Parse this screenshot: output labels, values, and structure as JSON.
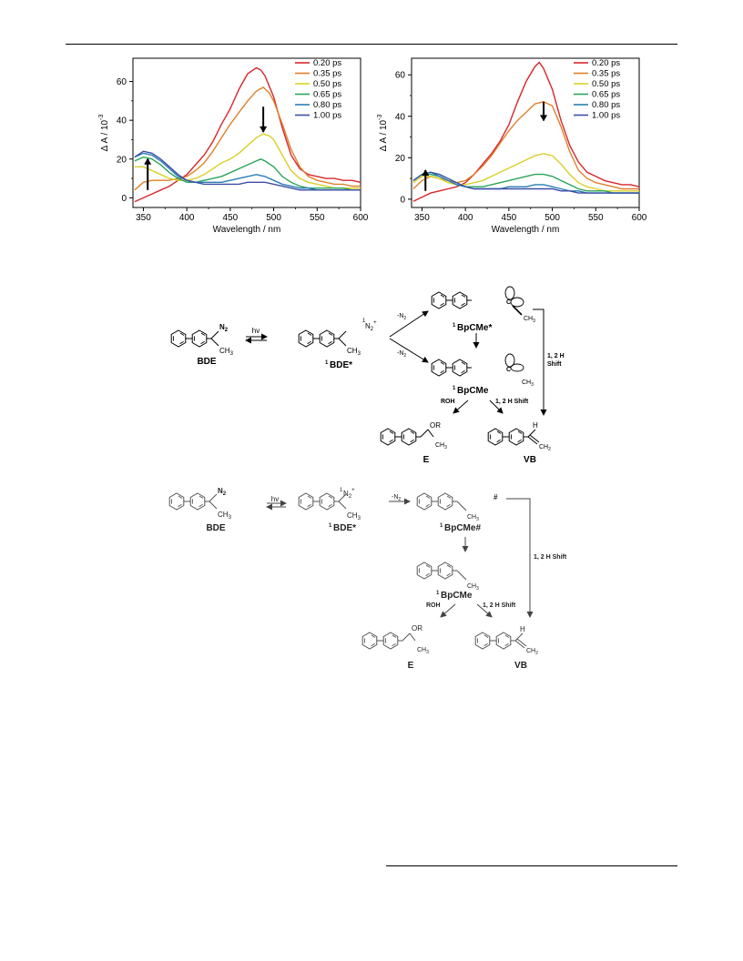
{
  "chart_data": [
    {
      "type": "line",
      "xlabel": "Wavelength / nm",
      "ylabel": "Δ A / 10",
      "ylabel_exp": "-3",
      "xlim": [
        338,
        600
      ],
      "ylim": [
        -5,
        72
      ],
      "xticks": [
        350,
        400,
        450,
        500,
        550,
        600
      ],
      "yticks": [
        0,
        20,
        40,
        60
      ],
      "legend_position": "top-right",
      "arrows": [
        "up at 355 nm",
        "down at 488 nm"
      ],
      "series": [
        {
          "name": "0.20 ps",
          "color": "#d7262b",
          "x": [
            340,
            350,
            360,
            370,
            380,
            390,
            400,
            410,
            420,
            430,
            440,
            450,
            460,
            470,
            480,
            485,
            490,
            500,
            510,
            520,
            530,
            540,
            550,
            560,
            570,
            580,
            590,
            600
          ],
          "y": [
            -2,
            0,
            2,
            4,
            6,
            9,
            12,
            17,
            22,
            29,
            38,
            46,
            56,
            64,
            67,
            66,
            63,
            52,
            36,
            22,
            15,
            12,
            11,
            10,
            10,
            9,
            9,
            8
          ]
        },
        {
          "name": "0.35 ps",
          "color": "#e07f2a",
          "x": [
            340,
            350,
            360,
            370,
            380,
            390,
            400,
            410,
            420,
            430,
            440,
            450,
            460,
            470,
            480,
            488,
            495,
            500,
            510,
            520,
            530,
            540,
            550,
            560,
            570,
            580,
            590,
            600
          ],
          "y": [
            4,
            8,
            9,
            9,
            9,
            10,
            11,
            14,
            18,
            24,
            31,
            38,
            44,
            50,
            55,
            57,
            54,
            50,
            38,
            25,
            16,
            11,
            9,
            8,
            7,
            7,
            6,
            6
          ]
        },
        {
          "name": "0.50 ps",
          "color": "#d8d027",
          "x": [
            340,
            350,
            360,
            370,
            380,
            390,
            400,
            410,
            420,
            430,
            440,
            450,
            460,
            470,
            480,
            488,
            495,
            500,
            510,
            520,
            530,
            540,
            550,
            560,
            570,
            580,
            590,
            600
          ],
          "y": [
            16,
            16,
            14,
            12,
            10,
            9,
            9,
            10,
            12,
            15,
            18,
            20,
            23,
            27,
            31,
            33,
            32,
            30,
            22,
            14,
            10,
            8,
            7,
            6,
            5,
            5,
            5,
            5
          ]
        },
        {
          "name": "0.65 ps",
          "color": "#2aa45a",
          "x": [
            340,
            350,
            360,
            370,
            380,
            390,
            400,
            410,
            420,
            430,
            440,
            450,
            460,
            470,
            480,
            485,
            490,
            500,
            510,
            520,
            530,
            540,
            550,
            560,
            570,
            580,
            590,
            600
          ],
          "y": [
            19,
            21,
            20,
            17,
            13,
            10,
            8,
            8,
            9,
            10,
            11,
            13,
            15,
            17,
            19,
            20,
            19,
            16,
            11,
            8,
            6,
            5,
            5,
            5,
            5,
            5,
            4,
            4
          ]
        },
        {
          "name": "0.80 ps",
          "color": "#2b7eb5",
          "x": [
            340,
            350,
            360,
            370,
            380,
            390,
            400,
            410,
            420,
            430,
            440,
            450,
            460,
            470,
            480,
            490,
            500,
            510,
            520,
            530,
            540,
            550,
            560,
            570,
            580,
            590,
            600
          ],
          "y": [
            21,
            23,
            22,
            19,
            15,
            11,
            9,
            8,
            8,
            8,
            8,
            9,
            10,
            11,
            12,
            11,
            9,
            7,
            6,
            5,
            5,
            4,
            4,
            4,
            4,
            4,
            4
          ]
        },
        {
          "name": "1.00 ps",
          "color": "#3c4ea5",
          "x": [
            340,
            350,
            360,
            370,
            380,
            390,
            400,
            410,
            420,
            430,
            440,
            450,
            460,
            470,
            480,
            490,
            500,
            510,
            520,
            530,
            540,
            550,
            560,
            570,
            580,
            590,
            600
          ],
          "y": [
            21,
            24,
            23,
            20,
            16,
            12,
            9,
            8,
            7,
            7,
            7,
            7,
            7,
            8,
            8,
            8,
            7,
            6,
            5,
            4,
            4,
            4,
            4,
            4,
            4,
            4,
            4
          ]
        }
      ]
    },
    {
      "type": "line",
      "xlabel": "Wavelength / nm",
      "ylabel": "Δ A / 10",
      "ylabel_exp": "-3",
      "xlim": [
        338,
        600
      ],
      "ylim": [
        -4,
        68
      ],
      "xticks": [
        350,
        400,
        450,
        500,
        550,
        600
      ],
      "yticks": [
        0,
        20,
        40,
        60
      ],
      "legend_position": "top-right",
      "arrows": [
        "up at 354 nm",
        "down at 490 nm"
      ],
      "series": [
        {
          "name": "0.20 ps",
          "color": "#d7262b",
          "x": [
            340,
            350,
            360,
            370,
            380,
            390,
            400,
            410,
            420,
            430,
            440,
            450,
            460,
            470,
            480,
            485,
            490,
            500,
            510,
            520,
            530,
            540,
            550,
            560,
            570,
            580,
            590,
            600
          ],
          "y": [
            -1,
            1,
            3,
            4,
            5,
            6,
            8,
            12,
            17,
            22,
            28,
            36,
            47,
            57,
            64,
            66,
            63,
            53,
            38,
            26,
            18,
            13,
            11,
            9,
            8,
            7,
            7,
            6
          ]
        },
        {
          "name": "0.35 ps",
          "color": "#e07f2a",
          "x": [
            340,
            350,
            360,
            370,
            380,
            390,
            400,
            410,
            420,
            430,
            440,
            450,
            460,
            470,
            480,
            490,
            500,
            510,
            520,
            530,
            540,
            550,
            560,
            570,
            580,
            590,
            600
          ],
          "y": [
            5,
            9,
            11,
            10,
            9,
            8,
            9,
            12,
            16,
            21,
            27,
            33,
            38,
            42,
            46,
            47,
            45,
            35,
            23,
            14,
            10,
            8,
            7,
            6,
            5,
            5,
            5
          ]
        },
        {
          "name": "0.50 ps",
          "color": "#d8d027",
          "x": [
            340,
            350,
            360,
            370,
            380,
            390,
            400,
            410,
            420,
            430,
            440,
            450,
            460,
            470,
            480,
            490,
            500,
            510,
            520,
            530,
            540,
            550,
            560,
            570,
            580,
            590,
            600
          ],
          "y": [
            8,
            11,
            11,
            10,
            8,
            7,
            7,
            8,
            9,
            11,
            13,
            15,
            17,
            19,
            21,
            22,
            21,
            17,
            12,
            8,
            6,
            5,
            4,
            4,
            4,
            4,
            4
          ]
        },
        {
          "name": "0.65 ps",
          "color": "#2aa45a",
          "x": [
            340,
            350,
            360,
            370,
            380,
            390,
            400,
            410,
            420,
            430,
            440,
            450,
            460,
            470,
            480,
            490,
            500,
            510,
            520,
            530,
            540,
            550,
            560,
            570,
            580,
            590,
            600
          ],
          "y": [
            9,
            12,
            12,
            11,
            9,
            7,
            6,
            6,
            6,
            7,
            8,
            9,
            10,
            11,
            12,
            12,
            11,
            9,
            7,
            5,
            4,
            4,
            4,
            3,
            3,
            3,
            3
          ]
        },
        {
          "name": "0.80 ps",
          "color": "#2b7eb5",
          "x": [
            340,
            350,
            360,
            370,
            380,
            390,
            400,
            410,
            420,
            430,
            440,
            450,
            460,
            470,
            480,
            490,
            500,
            510,
            520,
            530,
            540,
            550,
            560,
            570,
            580,
            590,
            600
          ],
          "y": [
            9,
            12,
            13,
            11,
            9,
            7,
            6,
            5,
            5,
            5,
            5,
            6,
            6,
            6,
            7,
            7,
            6,
            5,
            4,
            4,
            3,
            3,
            3,
            3,
            3,
            3,
            3
          ]
        },
        {
          "name": "1.00 ps",
          "color": "#3c4ea5",
          "x": [
            340,
            350,
            360,
            370,
            380,
            390,
            400,
            410,
            420,
            430,
            440,
            450,
            460,
            470,
            480,
            490,
            500,
            510,
            520,
            530,
            540,
            550,
            560,
            570,
            580,
            590,
            600
          ],
          "y": [
            9,
            12,
            13,
            12,
            10,
            8,
            6,
            5,
            5,
            5,
            5,
            5,
            5,
            5,
            5,
            5,
            5,
            4,
            4,
            3,
            3,
            3,
            3,
            3,
            3,
            3,
            3
          ]
        }
      ]
    }
  ],
  "scheme1": {
    "bde": "BDE",
    "bde_star": "BDE*",
    "sup1": "1",
    "hv": "hv",
    "n2": "N",
    "n2sub": "2",
    "n2plus": "+",
    "ch": "CH",
    "ch3sub": "3",
    "minus_n2": "-N",
    "bpcme_star": "BpCMe*",
    "bpcme": "BpCMe",
    "c_atom": "C",
    "shift_a": "1, 2 H",
    "shift_b": "Shift",
    "roh": "ROH",
    "shift_full": "1, 2 H Shift",
    "or": "OR",
    "e": "E",
    "vb": "VB",
    "h": "H",
    "ch2sub": "2"
  },
  "scheme2": {
    "bde": "BDE",
    "bde_star": "BDE*",
    "sup1": "1",
    "hv": "hv",
    "n2": "N",
    "n2sub": "2",
    "n2plus": "+",
    "ch": "CH",
    "ch3sub": "3",
    "minus_n2": "-N",
    "bpcme_hash": "BpCMe#",
    "hash": "#",
    "bpcme": "BpCMe",
    "shift_full": "1, 2 H Shift",
    "roh": "ROH",
    "or": "OR",
    "e": "E",
    "vb": "VB",
    "h": "H",
    "ch2sub": "2"
  }
}
